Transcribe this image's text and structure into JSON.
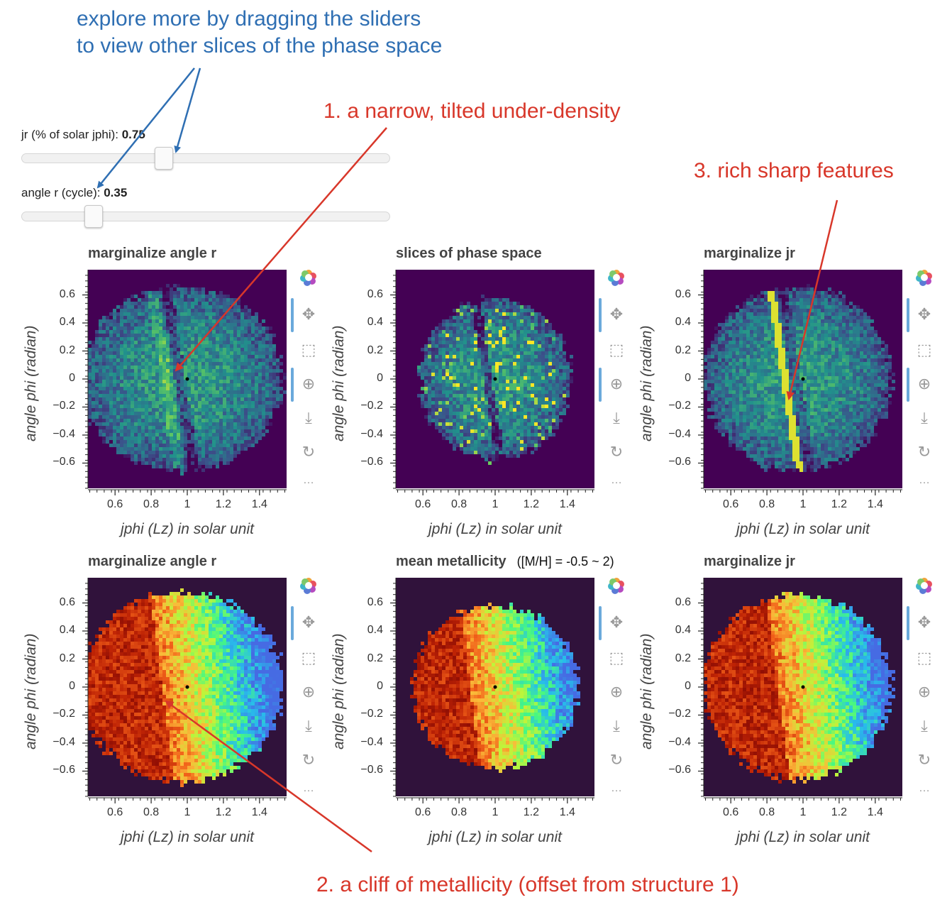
{
  "annotations": {
    "blue_line1": "explore more by dragging the sliders",
    "blue_line2": "to view other slices of the phase space",
    "red1": "1. a narrow, tilted under-density",
    "red2": "2. a cliff of metallicity (offset from structure 1)",
    "red3": "3. rich sharp features"
  },
  "sliders": [
    {
      "label": "jr (% of solar jphi)",
      "sep": ": ",
      "value": "0.75",
      "fraction": 0.38
    },
    {
      "label": "angle r (cycle)",
      "sep": ": ",
      "value": "0.35",
      "fraction": 0.18
    }
  ],
  "colors": {
    "density_background": "#440154",
    "metallicity_background": "#30123b",
    "toolbar_active": "#6aa9db"
  },
  "toolbar_icons": [
    "bokeh-logo-icon",
    "pan-icon",
    "box-zoom-icon",
    "wheel-zoom-icon",
    "save-icon",
    "reset-icon",
    "more-icon"
  ],
  "chart_data": [
    {
      "type": "heatmap",
      "title": "marginalize angle r",
      "title_note": "",
      "colormap": "viridis",
      "xlabel": "jphi (Lz) in solar unit",
      "ylabel": "angle phi (radian)",
      "xlim": [
        0.45,
        1.55
      ],
      "ylim": [
        -0.78,
        0.78
      ],
      "xticks": [
        "0.6",
        "0.8",
        "1",
        "1.2",
        "1.4"
      ],
      "yticks": [
        "0.6",
        "0.4",
        "0.2",
        "0",
        "−0.2",
        "−0.4",
        "−0.6"
      ],
      "marker": {
        "x": 1.0,
        "y": 0.0
      }
    },
    {
      "type": "heatmap",
      "title": "slices of phase space",
      "title_note": "",
      "colormap": "viridis",
      "xlabel": "jphi (Lz) in solar unit",
      "ylabel": "angle phi (radian)",
      "xlim": [
        0.45,
        1.55
      ],
      "ylim": [
        -0.78,
        0.78
      ],
      "xticks": [
        "0.6",
        "0.8",
        "1",
        "1.2",
        "1.4"
      ],
      "yticks": [
        "0.6",
        "0.4",
        "0.2",
        "0",
        "−0.2",
        "−0.4",
        "−0.6"
      ],
      "marker": {
        "x": 1.0,
        "y": 0.0
      }
    },
    {
      "type": "heatmap",
      "title": "marginalize jr",
      "title_note": "",
      "colormap": "viridis",
      "xlabel": "jphi (Lz) in solar unit",
      "ylabel": "angle phi (radian)",
      "xlim": [
        0.45,
        1.55
      ],
      "ylim": [
        -0.78,
        0.78
      ],
      "xticks": [
        "0.6",
        "0.8",
        "1",
        "1.2",
        "1.4"
      ],
      "yticks": [
        "0.6",
        "0.4",
        "0.2",
        "0",
        "−0.2",
        "−0.4",
        "−0.6"
      ],
      "marker": {
        "x": 1.0,
        "y": 0.0
      }
    },
    {
      "type": "heatmap",
      "title": "marginalize angle r",
      "title_note": "",
      "colormap": "turbo",
      "xlabel": "jphi (Lz) in solar unit",
      "ylabel": "angle phi (radian)",
      "xlim": [
        0.45,
        1.55
      ],
      "ylim": [
        -0.78,
        0.78
      ],
      "xticks": [
        "0.6",
        "0.8",
        "1",
        "1.2",
        "1.4"
      ],
      "yticks": [
        "0.6",
        "0.4",
        "0.2",
        "0",
        "−0.2",
        "−0.4",
        "−0.6"
      ],
      "marker": {
        "x": 1.0,
        "y": 0.0
      }
    },
    {
      "type": "heatmap",
      "title": "mean metallicity",
      "title_note": "([M/H] = -0.5 ~ 2)",
      "colormap": "turbo",
      "xlabel": "jphi (Lz) in solar unit",
      "ylabel": "angle phi (radian)",
      "xlim": [
        0.45,
        1.55
      ],
      "ylim": [
        -0.78,
        0.78
      ],
      "xticks": [
        "0.6",
        "0.8",
        "1",
        "1.2",
        "1.4"
      ],
      "yticks": [
        "0.6",
        "0.4",
        "0.2",
        "0",
        "−0.2",
        "−0.4",
        "−0.6"
      ],
      "marker": {
        "x": 1.0,
        "y": 0.0
      }
    },
    {
      "type": "heatmap",
      "title": "marginalize jr",
      "title_note": "",
      "colormap": "turbo",
      "xlabel": "jphi (Lz) in solar unit",
      "ylabel": "angle phi (radian)",
      "xlim": [
        0.45,
        1.55
      ],
      "ylim": [
        -0.78,
        0.78
      ],
      "xticks": [
        "0.6",
        "0.8",
        "1",
        "1.2",
        "1.4"
      ],
      "yticks": [
        "0.6",
        "0.4",
        "0.2",
        "0",
        "−0.2",
        "−0.4",
        "−0.6"
      ],
      "marker": {
        "x": 1.0,
        "y": 0.0
      }
    }
  ]
}
